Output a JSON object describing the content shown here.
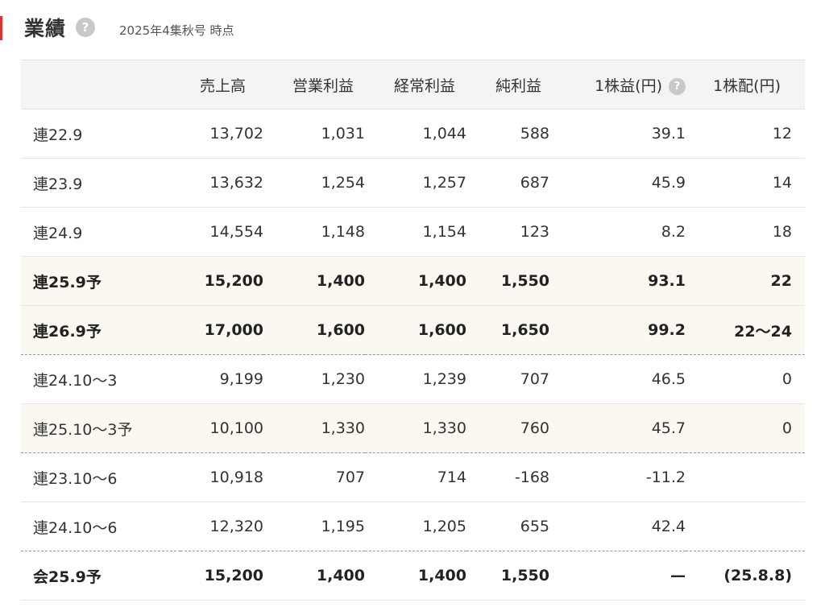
{
  "header": {
    "title": "業績",
    "help_icon": "question-icon",
    "as_of": "2025年4集秋号 時点"
  },
  "table": {
    "columns": [
      "",
      "売上高",
      "営業利益",
      "経常利益",
      "純利益",
      "1株益(円)",
      "1株配(円)"
    ],
    "eps_help_icon": "question-icon",
    "rows": [
      {
        "period": "連22.9",
        "sales": "13,702",
        "op": "1,031",
        "ord": "1,044",
        "net": "588",
        "eps": "39.1",
        "div": "12",
        "style": "normal"
      },
      {
        "period": "連23.9",
        "sales": "13,632",
        "op": "1,254",
        "ord": "1,257",
        "net": "687",
        "eps": "45.9",
        "div": "14",
        "style": "normal"
      },
      {
        "period": "連24.9",
        "sales": "14,554",
        "op": "1,148",
        "ord": "1,154",
        "net": "123",
        "eps": "8.2",
        "div": "18",
        "style": "normal"
      },
      {
        "period": "連25.9予",
        "sales": "15,200",
        "op": "1,400",
        "ord": "1,400",
        "net": "1,550",
        "eps": "93.1",
        "div": "22",
        "style": "forecast-bold"
      },
      {
        "period": "連26.9予",
        "sales": "17,000",
        "op": "1,600",
        "ord": "1,600",
        "net": "1,650",
        "eps": "99.2",
        "div": "22〜24",
        "style": "forecast-bold-dotted"
      },
      {
        "period": "連24.10〜3",
        "sales": "9,199",
        "op": "1,230",
        "ord": "1,239",
        "net": "707",
        "eps": "46.5",
        "div": "0",
        "style": "normal"
      },
      {
        "period": "連25.10〜3予",
        "sales": "10,100",
        "op": "1,330",
        "ord": "1,330",
        "net": "760",
        "eps": "45.7",
        "div": "0",
        "style": "forecast-dotted"
      },
      {
        "period": "連23.10〜6",
        "sales": "10,918",
        "op": "707",
        "ord": "714",
        "net": "-168",
        "eps": "-11.2",
        "div": "",
        "style": "normal"
      },
      {
        "period": "連24.10〜6",
        "sales": "12,320",
        "op": "1,195",
        "ord": "1,205",
        "net": "655",
        "eps": "42.4",
        "div": "",
        "style": "dotted"
      },
      {
        "period": "会25.9予",
        "sales": "15,200",
        "op": "1,400",
        "ord": "1,400",
        "net": "1,550",
        "eps": "—",
        "div": "(25.8.8)",
        "style": "bold"
      }
    ]
  },
  "colors": {
    "accent": "#e03030",
    "header_bg": "#f4f4f4",
    "forecast_bg": "#fbf7f1"
  }
}
